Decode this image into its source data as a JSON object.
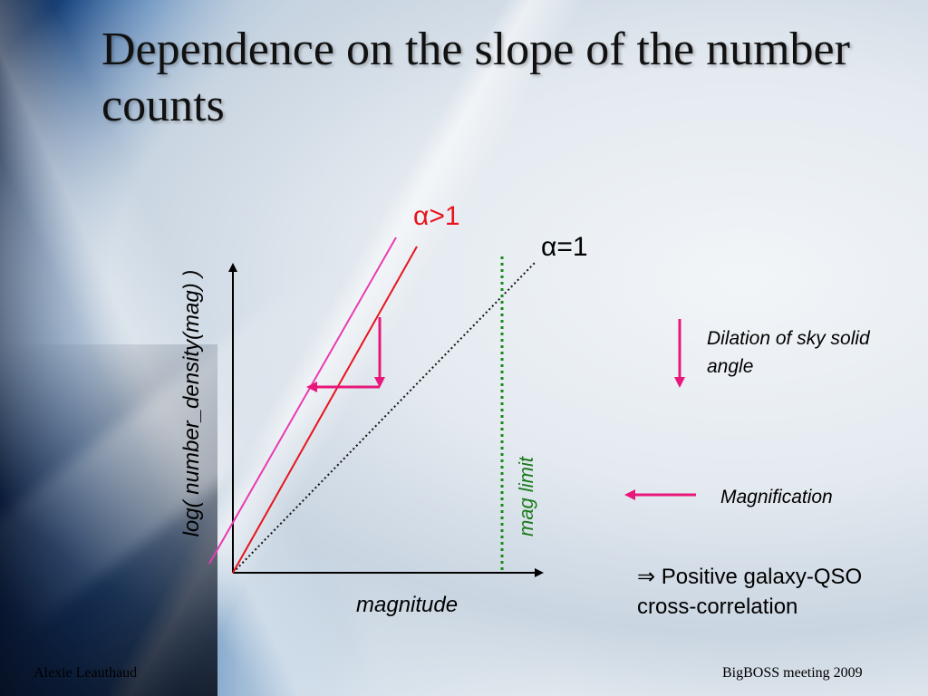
{
  "slide": {
    "title": "Dependence on the slope of the number counts",
    "footer_left": "Alexie Leauthaud",
    "footer_right": "BigBOSS meeting 2009"
  },
  "diagram": {
    "label_alpha_gt": "α>1",
    "label_alpha_eq": "α=1",
    "axis_y_label": "log( number_density(mag) )",
    "axis_x_label": "magnitude",
    "mag_limit_label": "mag limit",
    "dilation_label": "Dilation of sky solid angle",
    "magnification_label": "Magnification",
    "conclusion_label": "⇒ Positive galaxy-QSO cross-correlation"
  },
  "colors": {
    "alpha_gt_line": "#e8141e",
    "magenta_line": "#e83cb0",
    "arrow_pink": "#e8187a",
    "mag_limit_green": "#1a8a1a",
    "alpha_eq_line": "#111111",
    "axis": "#000000"
  }
}
